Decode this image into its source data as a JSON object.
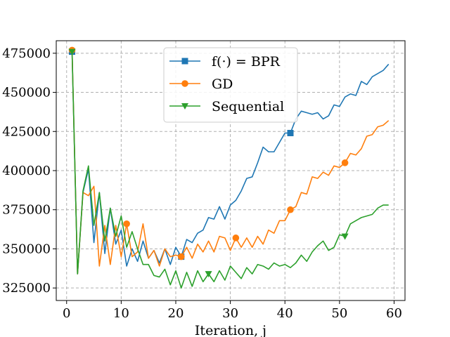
{
  "chart_data": {
    "type": "line",
    "title": "",
    "xlabel": "Iteration, j",
    "ylabel": "",
    "xlim": [
      -1.9,
      62
    ],
    "ylim": [
      317000,
      483000
    ],
    "xticks": [
      0,
      10,
      20,
      30,
      40,
      50,
      60
    ],
    "yticks": [
      325000,
      350000,
      375000,
      400000,
      425000,
      450000,
      475000
    ],
    "ytick_labels": [
      "325000",
      "350000",
      "375000",
      "400000",
      "425000",
      "450000",
      "475000"
    ],
    "grid": true,
    "legend_position": "top-center",
    "series": [
      {
        "name": "f(·) = BPR",
        "color": "#1f77b4",
        "marker": "square",
        "marker_every": [
          0,
          20,
          40
        ],
        "x": [
          1,
          2,
          3,
          4,
          5,
          6,
          7,
          8,
          9,
          10,
          11,
          12,
          13,
          14,
          15,
          16,
          17,
          18,
          19,
          20,
          21,
          22,
          23,
          24,
          25,
          26,
          27,
          28,
          29,
          30,
          31,
          32,
          33,
          34,
          35,
          36,
          37,
          38,
          39,
          40,
          41,
          42,
          43,
          44,
          45,
          46,
          47,
          48,
          49,
          50,
          51,
          52,
          53,
          54,
          55,
          56,
          57,
          58,
          59
        ],
        "y": [
          476000,
          334000,
          386000,
          401000,
          354000,
          386000,
          347000,
          376000,
          353000,
          362000,
          339000,
          350000,
          342000,
          355000,
          344000,
          349000,
          341000,
          350000,
          340000,
          351000,
          345000,
          356000,
          354000,
          360000,
          362000,
          370000,
          369000,
          377000,
          369000,
          378000,
          381000,
          387000,
          395000,
          396000,
          405000,
          415000,
          412000,
          412000,
          418000,
          424000,
          424000,
          433000,
          438000,
          437000,
          436000,
          437000,
          433000,
          435000,
          442000,
          441000,
          447000,
          449000,
          448000,
          457000,
          455000,
          460000,
          462000,
          464000,
          468000
        ]
      },
      {
        "name": "GD",
        "color": "#ff7f0e",
        "marker": "circle",
        "marker_every": [
          0,
          10,
          20,
          30,
          40,
          50
        ],
        "x": [
          1,
          2,
          3,
          4,
          5,
          6,
          7,
          8,
          9,
          10,
          11,
          12,
          13,
          14,
          15,
          16,
          17,
          18,
          19,
          20,
          21,
          22,
          23,
          24,
          25,
          26,
          27,
          28,
          29,
          30,
          31,
          32,
          33,
          34,
          35,
          36,
          37,
          38,
          39,
          40,
          41,
          42,
          43,
          44,
          45,
          46,
          47,
          48,
          49,
          50,
          51,
          52,
          53,
          54,
          55,
          56,
          57,
          58,
          59
        ],
        "y": [
          477000,
          334000,
          386000,
          384000,
          390000,
          339000,
          365000,
          340000,
          365000,
          345000,
          366000,
          345000,
          348000,
          366000,
          344000,
          349000,
          339000,
          350000,
          345000,
          346000,
          345000,
          351000,
          344000,
          353000,
          348000,
          355000,
          348000,
          358000,
          357000,
          349000,
          357000,
          351000,
          357000,
          351000,
          358000,
          353000,
          362000,
          360000,
          368000,
          368000,
          375000,
          377000,
          386000,
          385000,
          396000,
          395000,
          399000,
          397000,
          403000,
          402000,
          405000,
          411000,
          410000,
          414000,
          422000,
          423000,
          428000,
          429000,
          432000
        ]
      },
      {
        "name": "Sequential",
        "color": "#2ca02c",
        "marker": "triangle-down",
        "marker_every": [
          0,
          25,
          50
        ],
        "x": [
          1,
          2,
          3,
          4,
          5,
          6,
          7,
          8,
          9,
          10,
          11,
          12,
          13,
          14,
          15,
          16,
          17,
          18,
          19,
          20,
          21,
          22,
          23,
          24,
          25,
          26,
          27,
          28,
          29,
          30,
          31,
          32,
          33,
          34,
          35,
          36,
          37,
          38,
          39,
          40,
          41,
          42,
          43,
          44,
          45,
          46,
          47,
          48,
          49,
          50,
          51,
          52,
          53,
          54,
          55,
          56,
          57,
          58,
          59
        ],
        "y": [
          476000,
          334000,
          387000,
          403000,
          365000,
          386000,
          355000,
          376000,
          358000,
          371000,
          351000,
          361000,
          350000,
          340000,
          340000,
          333000,
          332000,
          337000,
          327000,
          336000,
          325000,
          335000,
          326000,
          336000,
          329000,
          334000,
          329000,
          336000,
          330000,
          339000,
          335000,
          331000,
          338000,
          334000,
          340000,
          339000,
          337000,
          341000,
          339000,
          340000,
          338000,
          341000,
          346000,
          342000,
          348000,
          352000,
          355000,
          349000,
          351000,
          359000,
          358000,
          366000,
          368000,
          370000,
          371000,
          372000,
          376000,
          378000,
          378000
        ]
      }
    ]
  }
}
